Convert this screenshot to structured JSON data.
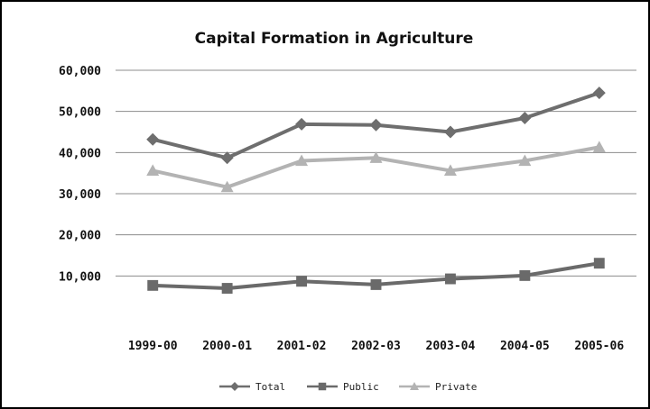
{
  "chart_data": {
    "type": "line",
    "title": "Capital Formation in Agriculture",
    "xlabel": "",
    "ylabel": "",
    "categories": [
      "1999-00",
      "2000-01",
      "2001-02",
      "2002-03",
      "2003-04",
      "2004-05",
      "2005-06"
    ],
    "ylim": [
      0,
      60000
    ],
    "yticks": [
      10000,
      20000,
      30000,
      40000,
      50000,
      60000
    ],
    "ytick_labels": [
      "10,000",
      "20,000",
      "30,000",
      "40,000",
      "50,000",
      "60,000"
    ],
    "grid": true,
    "legend": "bottom",
    "series": [
      {
        "name": "Total",
        "marker": "diamond",
        "color": "#6e6e6e",
        "values": [
          43200,
          38700,
          46900,
          46700,
          45000,
          48400,
          54500
        ]
      },
      {
        "name": "Public",
        "marker": "square",
        "color": "#6a6a6a",
        "values": [
          7700,
          7000,
          8700,
          7900,
          9300,
          10100,
          13100
        ]
      },
      {
        "name": "Private",
        "marker": "triangle",
        "color": "#b3b3b3",
        "values": [
          35600,
          31600,
          38000,
          38700,
          35600,
          38000,
          41300
        ]
      }
    ]
  }
}
